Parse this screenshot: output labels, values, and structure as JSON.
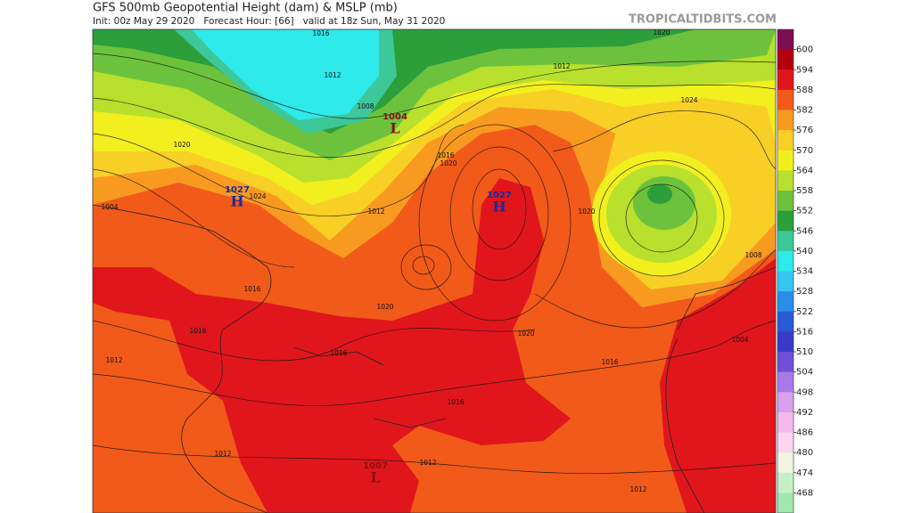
{
  "header": {
    "title": "GFS 500mb Geopotential Height (dam) & MSLP (mb)",
    "subtitle": "Init: 00z May 29 2020   Forecast Hour: [66]   valid at 18z Sun, May 31 2020",
    "source": "TROPICALTIDBITS.COM"
  },
  "colorbar": {
    "levels": [
      600,
      594,
      588,
      582,
      576,
      570,
      564,
      558,
      552,
      546,
      540,
      534,
      528,
      522,
      516,
      510,
      504,
      498,
      492,
      486,
      480,
      474,
      468
    ],
    "colors": [
      "#7c0d52",
      "#b3000d",
      "#e0161c",
      "#f25a1a",
      "#f99a20",
      "#f8cf25",
      "#f2ef1e",
      "#b8e02c",
      "#6cc23c",
      "#2c9e3a",
      "#3dc89a",
      "#2eeaea",
      "#36c6f2",
      "#2a8ee8",
      "#2a5ad6",
      "#3a3ac8",
      "#7050d8",
      "#a87ae8",
      "#d8a0f0",
      "#f4b8ec",
      "#fbd4f0",
      "#f0f4e0",
      "#c8f0c8",
      "#a0e8b0"
    ]
  },
  "pressure_centers": [
    {
      "value": "1004",
      "symbol": "L"
    },
    {
      "value": "1027",
      "symbol": "H"
    },
    {
      "value": "1027",
      "symbol": "H"
    },
    {
      "value": "1007",
      "symbol": "L"
    }
  ],
  "isobar_labels": [
    "1020",
    "1012",
    "1024",
    "1020",
    "1016",
    "1020",
    "1012",
    "1020",
    "1020",
    "1016",
    "1016",
    "1016",
    "1016",
    "1012",
    "1012",
    "1012",
    "1012",
    "1004",
    "1008",
    "1016",
    "1024",
    "1004",
    "1020",
    "1016",
    "1012",
    "1008"
  ]
}
